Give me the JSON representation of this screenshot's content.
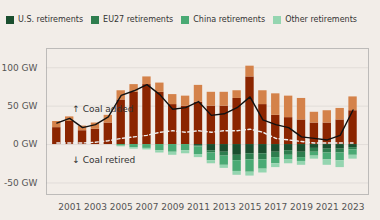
{
  "chart_data": {
    "type": "bar",
    "stacked": true,
    "x": [
      2000,
      2001,
      2002,
      2003,
      2004,
      2005,
      2006,
      2007,
      2008,
      2009,
      2010,
      2011,
      2012,
      2013,
      2014,
      2015,
      2016,
      2017,
      2018,
      2019,
      2020,
      2021,
      2022,
      2023
    ],
    "xlim": [
      1999.2,
      2024.2
    ],
    "xticks": [
      2001,
      2003,
      2005,
      2007,
      2009,
      2011,
      2013,
      2015,
      2017,
      2019,
      2021,
      2023
    ],
    "ylim": [
      -65,
      125
    ],
    "yticks": [
      {
        "value": -50,
        "label": "-50 GW"
      },
      {
        "value": 0,
        "label": "0 GW"
      },
      {
        "value": 50,
        "label": "50 GW"
      },
      {
        "value": 100,
        "label": "100 GW"
      }
    ],
    "grid": true,
    "legend": "upper left",
    "series": [
      {
        "color": "#8B2500",
        "values": [
          22,
          30,
          18,
          20,
          28,
          58,
          68,
          78,
          68,
          52,
          50,
          55,
          50,
          50,
          60,
          88,
          52,
          38,
          35,
          32,
          28,
          28,
          32,
          44
        ]
      },
      {
        "color": "#D4824A",
        "values": [
          8,
          6,
          6,
          8,
          10,
          12,
          10,
          10,
          12,
          13,
          13,
          22,
          18,
          18,
          10,
          14,
          18,
          28,
          28,
          28,
          14,
          16,
          15,
          18
        ]
      },
      {
        "name": "U.S. retirements",
        "color": "#1a4e2e",
        "values": [
          0,
          0,
          0,
          0,
          0,
          0,
          0,
          0,
          0,
          0,
          0,
          -2,
          -8,
          -10,
          -14,
          -12,
          -12,
          -10,
          -8,
          -10,
          -5,
          -6,
          -6,
          -4
        ]
      },
      {
        "name": "EU27 retirements",
        "color": "#2e7d4e",
        "values": [
          0,
          0,
          0,
          0,
          0,
          0,
          0,
          0,
          0,
          0,
          0,
          -1,
          -3,
          -5,
          -7,
          -8,
          -8,
          -7,
          -6,
          -7,
          -5,
          -5,
          -5,
          -3
        ]
      },
      {
        "name": "China retirements",
        "color": "#4aaa74",
        "values": [
          0,
          0,
          0,
          0,
          0,
          -2,
          -4,
          -5,
          -8,
          -10,
          -8,
          -10,
          -10,
          -12,
          -14,
          -16,
          -12,
          -8,
          -6,
          -5,
          -5,
          -9,
          -10,
          -7
        ]
      },
      {
        "name": "Other retirements",
        "color": "#95d5b0",
        "values": [
          0,
          0,
          0,
          0,
          0,
          -1,
          -2,
          -2,
          -3,
          -4,
          -4,
          -4,
          -4,
          -4,
          -5,
          -5,
          -5,
          -5,
          -5,
          -5,
          -4,
          -7,
          -9,
          -5
        ]
      },
      {
        "type": "line",
        "color": "#111111",
        "values": [
          28,
          34,
          22,
          26,
          36,
          64,
          70,
          78,
          65,
          46,
          48,
          56,
          38,
          40,
          48,
          62,
          32,
          26,
          22,
          10,
          8,
          6,
          12,
          45
        ]
      },
      {
        "type": "line",
        "color": "#eeeeee",
        "line_style": "dashed",
        "values": [
          2,
          2,
          2,
          3,
          5,
          8,
          10,
          12,
          16,
          18,
          16,
          18,
          16,
          18,
          18,
          20,
          16,
          8,
          6,
          4,
          2,
          2,
          2,
          2
        ]
      }
    ],
    "annotations": [
      {
        "text": "↑ Coal added",
        "x": 2001.2,
        "y": 42
      },
      {
        "text": "↓ Coal retired",
        "x": 2001.2,
        "y": -24
      }
    ]
  }
}
